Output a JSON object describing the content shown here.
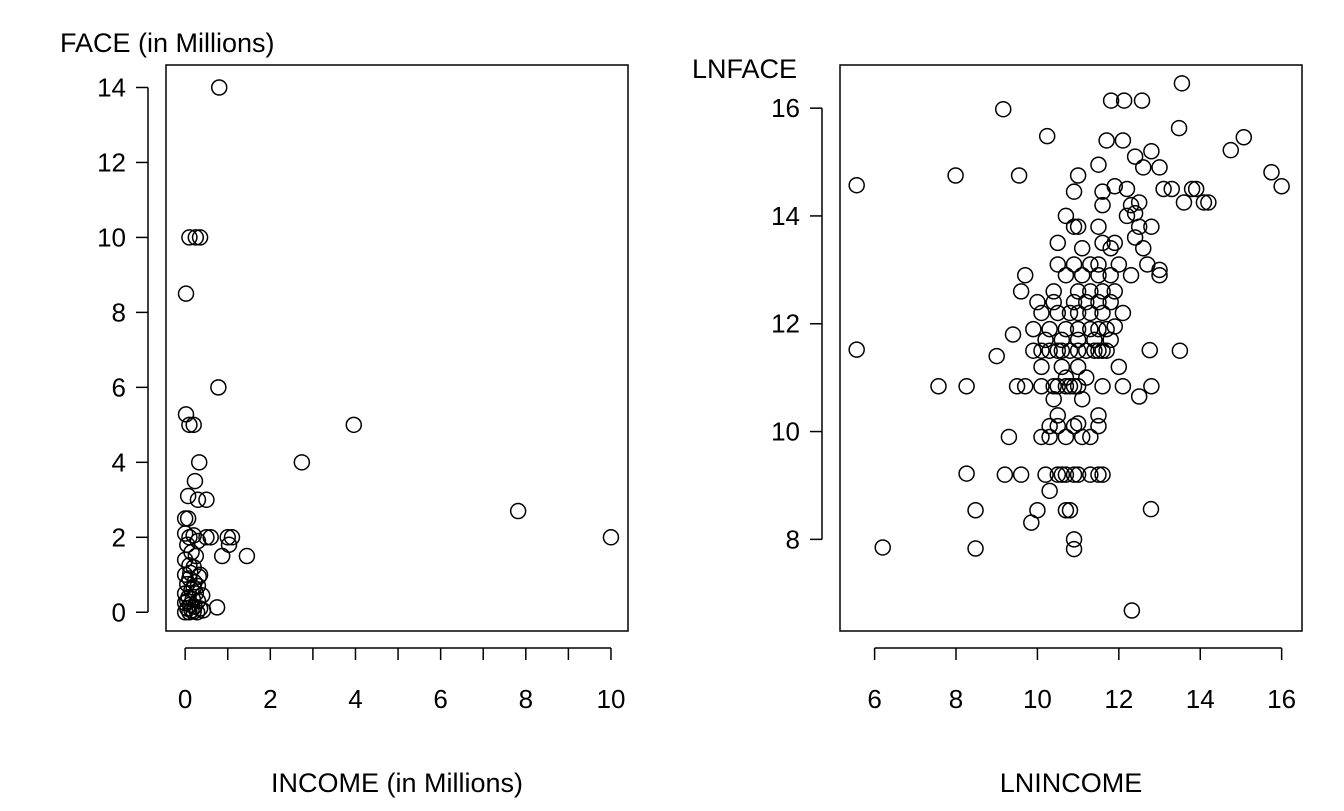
{
  "chart_data": [
    {
      "type": "scatter",
      "title": "",
      "xlabel": "INCOME (in Millions)",
      "ylabel": "FACE (in Millions)",
      "xlim": [
        -0.45,
        10.4
      ],
      "ylim": [
        -0.5,
        14.6
      ],
      "xticks": [
        0,
        2,
        4,
        6,
        8,
        10
      ],
      "xminor_ticks": [
        1,
        3,
        5,
        7,
        9
      ],
      "yticks": [
        0,
        2,
        4,
        6,
        8,
        10,
        12,
        14
      ],
      "grid": false,
      "marker": "open-circle",
      "points": [
        [
          0.8,
          14.0
        ],
        [
          0.1,
          10.0
        ],
        [
          0.25,
          10.0
        ],
        [
          0.35,
          10.0
        ],
        [
          0.02,
          8.5
        ],
        [
          0.78,
          6.0
        ],
        [
          0.02,
          5.28
        ],
        [
          0.1,
          5.0
        ],
        [
          0.2,
          5.0
        ],
        [
          3.96,
          5.0
        ],
        [
          2.74,
          4.0
        ],
        [
          0.33,
          4.0
        ],
        [
          0.23,
          3.5
        ],
        [
          0.07,
          3.1
        ],
        [
          0.3,
          3.0
        ],
        [
          0.5,
          3.0
        ],
        [
          0.0,
          2.5
        ],
        [
          0.07,
          2.5
        ],
        [
          7.82,
          2.7
        ],
        [
          10.0,
          2.0
        ],
        [
          1.1,
          2.0
        ],
        [
          1.0,
          2.0
        ],
        [
          0.6,
          2.0
        ],
        [
          0.5,
          2.0
        ],
        [
          1.03,
          1.8
        ],
        [
          1.45,
          1.5
        ],
        [
          0.87,
          1.5
        ],
        [
          0.75,
          0.13
        ],
        [
          0.0,
          2.1
        ],
        [
          0.1,
          2.0
        ],
        [
          0.2,
          2.05
        ],
        [
          0.3,
          1.9
        ],
        [
          0.05,
          1.8
        ],
        [
          0.15,
          1.6
        ],
        [
          0.25,
          1.5
        ],
        [
          0.0,
          1.4
        ],
        [
          0.1,
          1.25
        ],
        [
          0.2,
          1.2
        ],
        [
          0.35,
          1.0
        ],
        [
          0.0,
          1.0
        ],
        [
          0.1,
          0.9
        ],
        [
          0.22,
          0.8
        ],
        [
          0.05,
          0.75
        ],
        [
          0.3,
          0.7
        ],
        [
          0.15,
          0.6
        ],
        [
          0.0,
          0.5
        ],
        [
          0.25,
          0.5
        ],
        [
          0.4,
          0.45
        ],
        [
          0.08,
          0.4
        ],
        [
          0.18,
          0.35
        ],
        [
          0.3,
          0.3
        ],
        [
          0.0,
          0.25
        ],
        [
          0.12,
          0.2
        ],
        [
          0.22,
          0.15
        ],
        [
          0.35,
          0.1
        ],
        [
          0.05,
          0.1
        ],
        [
          0.15,
          0.05
        ],
        [
          0.0,
          0.0
        ],
        [
          0.1,
          0.0
        ],
        [
          0.2,
          0.02
        ],
        [
          0.28,
          0.0
        ],
        [
          0.42,
          0.05
        ],
        [
          0.05,
          0.3
        ],
        [
          0.2,
          0.65
        ],
        [
          0.32,
          0.95
        ],
        [
          0.12,
          1.05
        ]
      ]
    },
    {
      "type": "scatter",
      "title": "",
      "xlabel": "LNINCOME",
      "ylabel": "LNFACE",
      "xlim": [
        5.15,
        16.5
      ],
      "ylim": [
        6.3,
        16.8
      ],
      "xticks": [
        6,
        8,
        10,
        12,
        14,
        16
      ],
      "yticks": [
        8,
        10,
        12,
        14,
        16
      ],
      "grid": false,
      "marker": "open-circle",
      "points": [
        [
          5.56,
          14.57
        ],
        [
          5.56,
          11.52
        ],
        [
          6.2,
          7.85
        ],
        [
          8.48,
          7.83
        ],
        [
          8.48,
          8.54
        ],
        [
          8.26,
          9.22
        ],
        [
          8.26,
          10.84
        ],
        [
          7.57,
          10.84
        ],
        [
          7.99,
          14.75
        ],
        [
          9.16,
          15.98
        ],
        [
          10.24,
          15.48
        ],
        [
          9.55,
          14.75
        ],
        [
          11.81,
          16.14
        ],
        [
          12.13,
          16.14
        ],
        [
          12.57,
          16.14
        ],
        [
          13.55,
          16.46
        ],
        [
          13.48,
          15.63
        ],
        [
          15.07,
          15.46
        ],
        [
          14.75,
          15.22
        ],
        [
          15.75,
          14.81
        ],
        [
          16.0,
          14.55
        ],
        [
          14.09,
          14.25
        ],
        [
          12.79,
          8.56
        ],
        [
          12.32,
          6.68
        ],
        [
          12.76,
          11.51
        ],
        [
          9.85,
          8.31
        ],
        [
          9.2,
          9.2
        ],
        [
          9.6,
          9.2
        ],
        [
          10.2,
          9.2
        ],
        [
          10.5,
          9.2
        ],
        [
          10.6,
          9.2
        ],
        [
          10.7,
          9.2
        ],
        [
          10.9,
          9.2
        ],
        [
          11.0,
          9.2
        ],
        [
          11.3,
          9.2
        ],
        [
          11.5,
          9.2
        ],
        [
          11.6,
          9.2
        ],
        [
          9.3,
          9.9
        ],
        [
          10.1,
          9.9
        ],
        [
          10.3,
          9.9
        ],
        [
          10.7,
          9.9
        ],
        [
          11.1,
          9.9
        ],
        [
          11.3,
          9.9
        ],
        [
          10.3,
          10.1
        ],
        [
          10.5,
          10.1
        ],
        [
          10.9,
          10.1
        ],
        [
          11.0,
          10.15
        ],
        [
          11.5,
          10.1
        ],
        [
          10.5,
          10.3
        ],
        [
          11.5,
          10.3
        ],
        [
          10.4,
          10.6
        ],
        [
          11.1,
          10.6
        ],
        [
          12.5,
          10.65
        ],
        [
          9.5,
          10.84
        ],
        [
          9.7,
          10.84
        ],
        [
          10.1,
          10.84
        ],
        [
          10.4,
          10.84
        ],
        [
          10.5,
          10.84
        ],
        [
          10.7,
          10.84
        ],
        [
          10.8,
          10.84
        ],
        [
          10.9,
          10.84
        ],
        [
          11.0,
          10.84
        ],
        [
          11.6,
          10.84
        ],
        [
          12.1,
          10.84
        ],
        [
          12.8,
          10.84
        ],
        [
          10.7,
          11.0
        ],
        [
          11.2,
          11.0
        ],
        [
          10.1,
          11.2
        ],
        [
          10.6,
          11.2
        ],
        [
          11.0,
          11.2
        ],
        [
          12.0,
          11.2
        ],
        [
          9.0,
          11.4
        ],
        [
          9.9,
          11.5
        ],
        [
          10.1,
          11.5
        ],
        [
          10.3,
          11.5
        ],
        [
          10.5,
          11.5
        ],
        [
          10.6,
          11.5
        ],
        [
          10.8,
          11.5
        ],
        [
          11.0,
          11.5
        ],
        [
          11.2,
          11.5
        ],
        [
          11.4,
          11.5
        ],
        [
          11.5,
          11.5
        ],
        [
          11.6,
          11.5
        ],
        [
          11.7,
          11.5
        ],
        [
          13.5,
          11.5
        ],
        [
          9.4,
          11.8
        ],
        [
          10.2,
          11.7
        ],
        [
          10.6,
          11.7
        ],
        [
          11.0,
          11.7
        ],
        [
          11.4,
          11.7
        ],
        [
          11.8,
          11.7
        ],
        [
          9.9,
          11.9
        ],
        [
          10.3,
          11.9
        ],
        [
          10.7,
          11.9
        ],
        [
          11.0,
          11.9
        ],
        [
          11.3,
          11.9
        ],
        [
          11.5,
          11.9
        ],
        [
          11.7,
          11.9
        ],
        [
          11.9,
          11.95
        ],
        [
          10.1,
          12.2
        ],
        [
          10.5,
          12.2
        ],
        [
          10.8,
          12.2
        ],
        [
          11.0,
          12.2
        ],
        [
          11.3,
          12.2
        ],
        [
          11.6,
          12.2
        ],
        [
          12.1,
          12.2
        ],
        [
          10.0,
          12.4
        ],
        [
          10.4,
          12.4
        ],
        [
          10.9,
          12.4
        ],
        [
          11.2,
          12.4
        ],
        [
          11.5,
          12.4
        ],
        [
          11.8,
          12.4
        ],
        [
          9.6,
          12.6
        ],
        [
          10.4,
          12.6
        ],
        [
          11.0,
          12.6
        ],
        [
          11.3,
          12.6
        ],
        [
          11.6,
          12.6
        ],
        [
          11.9,
          12.6
        ],
        [
          9.7,
          12.9
        ],
        [
          10.7,
          12.9
        ],
        [
          11.1,
          12.9
        ],
        [
          11.5,
          12.9
        ],
        [
          11.8,
          12.9
        ],
        [
          12.3,
          12.9
        ],
        [
          13.0,
          12.9
        ],
        [
          10.5,
          13.1
        ],
        [
          10.9,
          13.1
        ],
        [
          11.3,
          13.1
        ],
        [
          11.5,
          13.1
        ],
        [
          12.0,
          13.1
        ],
        [
          12.7,
          13.1
        ],
        [
          13.0,
          13.0
        ],
        [
          11.1,
          13.4
        ],
        [
          11.8,
          13.4
        ],
        [
          12.6,
          13.4
        ],
        [
          10.5,
          13.5
        ],
        [
          11.6,
          13.5
        ],
        [
          11.9,
          13.5
        ],
        [
          12.4,
          13.6
        ],
        [
          10.9,
          13.8
        ],
        [
          11.0,
          13.8
        ],
        [
          11.5,
          13.8
        ],
        [
          12.5,
          13.8
        ],
        [
          12.8,
          13.8
        ],
        [
          10.7,
          14.0
        ],
        [
          12.2,
          14.0
        ],
        [
          12.4,
          14.05
        ],
        [
          11.6,
          14.2
        ],
        [
          12.3,
          14.2
        ],
        [
          12.5,
          14.25
        ],
        [
          13.6,
          14.25
        ],
        [
          14.2,
          14.25
        ],
        [
          10.9,
          14.45
        ],
        [
          11.6,
          14.45
        ],
        [
          11.9,
          14.55
        ],
        [
          12.2,
          14.5
        ],
        [
          13.1,
          14.5
        ],
        [
          13.3,
          14.5
        ],
        [
          13.8,
          14.5
        ],
        [
          13.9,
          14.5
        ],
        [
          11.0,
          14.75
        ],
        [
          11.5,
          14.95
        ],
        [
          12.6,
          14.9
        ],
        [
          13.0,
          14.9
        ],
        [
          12.4,
          15.1
        ],
        [
          12.8,
          15.2
        ],
        [
          11.7,
          15.4
        ],
        [
          12.1,
          15.4
        ],
        [
          10.0,
          8.54
        ],
        [
          10.7,
          8.54
        ],
        [
          10.8,
          8.54
        ],
        [
          10.9,
          8.0
        ],
        [
          10.9,
          7.82
        ],
        [
          10.3,
          8.9
        ]
      ]
    }
  ]
}
